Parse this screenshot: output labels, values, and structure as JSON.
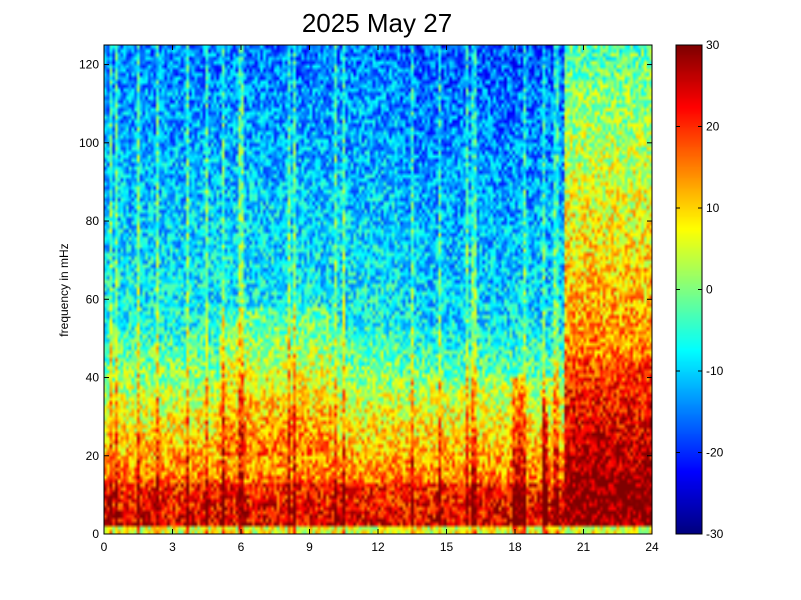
{
  "chart_data": {
    "type": "heatmap",
    "title": "2025 May 27",
    "xlabel": "",
    "ylabel": "frequency in mHz",
    "xlim": [
      0,
      24
    ],
    "ylim": [
      0,
      125
    ],
    "x_ticks": [
      "0",
      "3",
      "6",
      "9",
      "12",
      "15",
      "18",
      "21",
      "24"
    ],
    "y_ticks": [
      "0",
      "20",
      "40",
      "60",
      "80",
      "100",
      "120"
    ],
    "colorbar": {
      "colormap": "jet",
      "range": [
        -30,
        30
      ],
      "ticks": [
        "-30",
        "-20",
        "-10",
        "0",
        "10",
        "20",
        "30"
      ]
    },
    "description_bands": [
      {
        "x_range": [
          0,
          20.2
        ],
        "freq_range": [
          0,
          15
        ],
        "level": 25
      },
      {
        "x_range": [
          0,
          20.2
        ],
        "freq_range": [
          15,
          40
        ],
        "level": 10
      },
      {
        "x_range": [
          0,
          20.2
        ],
        "freq_range": [
          40,
          125
        ],
        "level": -15
      },
      {
        "x_range": [
          20.2,
          24
        ],
        "freq_range": [
          0,
          40
        ],
        "level": 30
      },
      {
        "x_range": [
          20.2,
          24
        ],
        "freq_range": [
          40,
          125
        ],
        "level": 5
      }
    ]
  }
}
